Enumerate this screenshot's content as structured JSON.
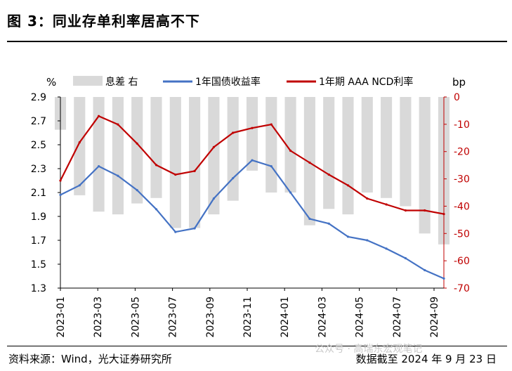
{
  "page": {
    "figure_title": "图 3：同业存单利率居高不下",
    "source": "资料来源：Wind，光大证券研究所",
    "as_of": "数据截至 2024 年 9 月 23 日",
    "watermark": "公众号 · 高瑞东宏观笔记"
  },
  "chart_data": {
    "type": "line",
    "left_unit": "%",
    "right_unit": "bp",
    "left_axis": {
      "range": [
        1.3,
        2.9
      ],
      "ticks": [
        "1.3",
        "1.5",
        "1.7",
        "1.9",
        "2.1",
        "2.3",
        "2.5",
        "2.7",
        "2.9"
      ]
    },
    "right_axis": {
      "range": [
        -70,
        0
      ],
      "ticks": [
        "-70",
        "-60",
        "-50",
        "-40",
        "-30",
        "-20",
        "-10",
        "0"
      ]
    },
    "x_ticks": [
      "2023-01",
      "2023-03",
      "2023-05",
      "2023-07",
      "2023-09",
      "2023-11",
      "2024-01",
      "2024-03",
      "2024-05",
      "2024-07",
      "2024-09"
    ],
    "legend": [
      "息差 右",
      "1年国债收益率",
      "1年期 AAA NCD利率"
    ],
    "colors": {
      "spread": "#d9d9d9",
      "treasury": "#4472c4",
      "ncd": "#c00000",
      "axis_right": "#c00000"
    },
    "series": [
      {
        "name": "1年国债收益率",
        "x": [
          "2023-01",
          "2023-02",
          "2023-03",
          "2023-04",
          "2023-05",
          "2023-06",
          "2023-07",
          "2023-08",
          "2023-09",
          "2023-10",
          "2023-11",
          "2023-12",
          "2024-01",
          "2024-02",
          "2024-03",
          "2024-04",
          "2024-05",
          "2024-06",
          "2024-07",
          "2024-08",
          "2024-09"
        ],
        "values": [
          2.08,
          2.16,
          2.32,
          2.24,
          2.12,
          1.96,
          1.77,
          1.8,
          2.05,
          2.22,
          2.37,
          2.32,
          2.1,
          1.88,
          1.84,
          1.73,
          1.7,
          1.63,
          1.55,
          1.45,
          1.38
        ]
      },
      {
        "name": "1年期 AAA NCD利率",
        "x": [
          "2023-01",
          "2023-02",
          "2023-03",
          "2023-04",
          "2023-05",
          "2023-06",
          "2023-07",
          "2023-08",
          "2023-09",
          "2023-10",
          "2023-11",
          "2023-12",
          "2024-01",
          "2024-02",
          "2024-03",
          "2024-04",
          "2024-05",
          "2024-06",
          "2024-07",
          "2024-08",
          "2024-09"
        ],
        "values": [
          2.2,
          2.52,
          2.74,
          2.67,
          2.51,
          2.33,
          2.25,
          2.28,
          2.48,
          2.6,
          2.64,
          2.67,
          2.45,
          2.35,
          2.25,
          2.16,
          2.05,
          2.0,
          1.95,
          1.95,
          1.92
        ]
      },
      {
        "name": "息差 右",
        "x": [
          "2023-01",
          "2023-02",
          "2023-03",
          "2023-04",
          "2023-05",
          "2023-06",
          "2023-07",
          "2023-08",
          "2023-09",
          "2023-10",
          "2023-11",
          "2023-12",
          "2024-01",
          "2024-02",
          "2024-03",
          "2024-04",
          "2024-05",
          "2024-06",
          "2024-07",
          "2024-08",
          "2024-09"
        ],
        "values": [
          -12,
          -36,
          -42,
          -43,
          -39,
          -37,
          -48,
          -48,
          -43,
          -38,
          -27,
          -35,
          -35,
          -47,
          -41,
          -43,
          -35,
          -37,
          -40,
          -50,
          -54
        ]
      }
    ]
  }
}
